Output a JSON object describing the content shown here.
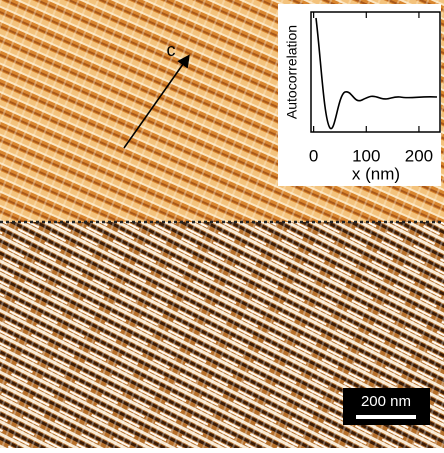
{
  "panel_label": "c",
  "inset": {
    "y_label": "Autocorrelation",
    "x_label": "x (nm)",
    "xlim": [
      -5,
      240
    ],
    "xticks": [
      0,
      100,
      200
    ]
  },
  "scale_bar": "200 nm"
}
